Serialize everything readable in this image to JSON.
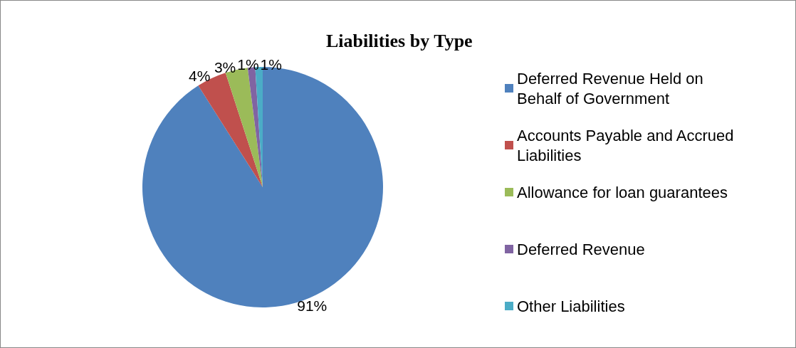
{
  "chart_data": {
    "type": "pie",
    "title": "Liabilities by Type",
    "categories": [
      "Deferred Revenue Held on Behalf of Government",
      "Accounts Payable and Accrued Liabilities",
      "Allowance for loan guarantees",
      "Deferred Revenue",
      "Other Liabilities"
    ],
    "values": [
      91,
      4,
      3,
      1,
      1
    ],
    "colors": [
      "#4f81bd",
      "#c0504d",
      "#9bbb59",
      "#8064a2",
      "#4bacc6"
    ],
    "value_labels": [
      "91%",
      "4%",
      "3%",
      "1%",
      "1%"
    ],
    "legend": "right"
  }
}
